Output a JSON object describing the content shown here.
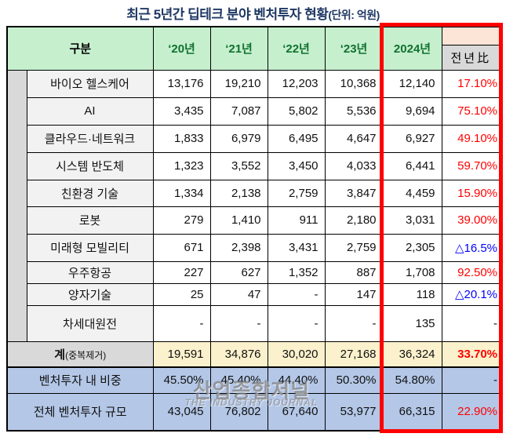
{
  "title": {
    "main": "최근 5년간 딥테크 분야 벤처투자 현황",
    "unit": "(단위: 억원)"
  },
  "header": {
    "category": "구분",
    "years": [
      "‘20년",
      "‘21년",
      "‘22년",
      "‘23년"
    ],
    "current_year": "2024년",
    "yoy": "전년比"
  },
  "rows": [
    {
      "label": "바이오 헬스케어",
      "values": [
        "13,176",
        "19,210",
        "12,203",
        "10,368",
        "12,140"
      ],
      "yoy": "17.10%",
      "yoy_type": "up"
    },
    {
      "label": "AI",
      "values": [
        "3,435",
        "7,087",
        "5,802",
        "5,536",
        "9,694"
      ],
      "yoy": "75.10%",
      "yoy_type": "up"
    },
    {
      "label": "클라우드·네트워크",
      "values": [
        "1,833",
        "6,979",
        "6,495",
        "4,647",
        "6,927"
      ],
      "yoy": "49.10%",
      "yoy_type": "up"
    },
    {
      "label": "시스템 반도체",
      "values": [
        "1,323",
        "3,552",
        "3,450",
        "4,033",
        "6,441"
      ],
      "yoy": "59.70%",
      "yoy_type": "up"
    },
    {
      "label": "친환경 기술",
      "values": [
        "1,334",
        "2,138",
        "2,759",
        "3,847",
        "4,459"
      ],
      "yoy": "15.90%",
      "yoy_type": "up"
    },
    {
      "label": "로봇",
      "values": [
        "279",
        "1,410",
        "911",
        "2,180",
        "3,031"
      ],
      "yoy": "39.00%",
      "yoy_type": "up"
    },
    {
      "label": "미래형 모빌리티",
      "values": [
        "671",
        "2,398",
        "3,431",
        "2,759",
        "2,305"
      ],
      "yoy": "△16.5%",
      "yoy_type": "down"
    },
    {
      "label": "우주항공",
      "values": [
        "227",
        "627",
        "1,352",
        "887",
        "1,708"
      ],
      "yoy": "92.50%",
      "yoy_type": "up"
    },
    {
      "label": "양자기술",
      "values": [
        "25",
        "47",
        "-",
        "147",
        "118"
      ],
      "yoy": "△20.1%",
      "yoy_type": "down"
    },
    {
      "label": "차세대원전",
      "values": [
        "-",
        "-",
        "-",
        "-",
        "135"
      ],
      "yoy": "-",
      "yoy_type": "none"
    }
  ],
  "total_row": {
    "label": "계",
    "label_sub": "(중복제거)",
    "values": [
      "19,591",
      "34,876",
      "30,020",
      "27,168",
      "36,324"
    ],
    "yoy": "33.70%"
  },
  "share_row": {
    "label": "벤처투자 내 비중",
    "values": [
      "45.50%",
      "45.40%",
      "44.40%",
      "50.30%",
      "54.80%"
    ],
    "yoy": "-"
  },
  "total_vc_row": {
    "label": "전체 벤처투자 규모",
    "values": [
      "43,045",
      "76,802",
      "67,640",
      "53,977",
      "66,315"
    ],
    "yoy": "22.90%"
  },
  "watermark": {
    "korean": "산업종합저널",
    "english": "THE INDUSTRY JOURNAL"
  },
  "colors": {
    "title_navy": "#1f3864",
    "header_green_bg": "#c6efce",
    "header_year_text": "#10712e",
    "peach_bg": "#fce4d6",
    "gray_bg": "#d9d9d9",
    "category_bg": "#f2f2f2",
    "yellow_bg": "#fbf1cc",
    "blue_row_bg": "#b4c7e7",
    "increase_red": "#ff0000",
    "decrease_blue": "#0000ff",
    "highlight_border": "#ff0000"
  }
}
